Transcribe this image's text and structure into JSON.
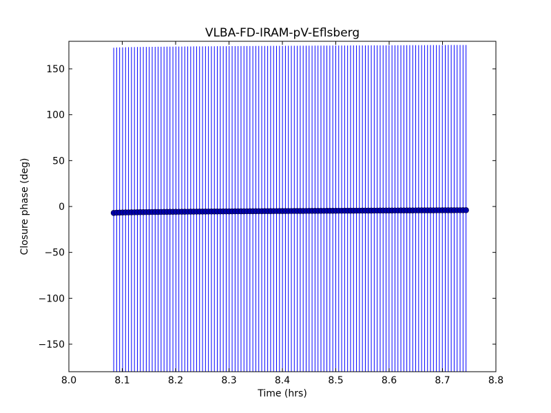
{
  "chart_data": {
    "type": "scatter",
    "title": "VLBA-FD-IRAM-pV-Eflsberg",
    "xlabel": "Time (hrs)",
    "ylabel": "Closure phase (deg)",
    "xlim": [
      8.0,
      8.8
    ],
    "ylim": [
      -180,
      180
    ],
    "x_ticks": [
      8.0,
      8.1,
      8.2,
      8.3,
      8.4,
      8.5,
      8.6,
      8.7,
      8.8
    ],
    "x_tick_labels": [
      "8.0",
      "8.1",
      "8.2",
      "8.3",
      "8.4",
      "8.5",
      "8.6",
      "8.7",
      "8.8"
    ],
    "y_ticks": [
      -150,
      -100,
      -50,
      0,
      50,
      100,
      150
    ],
    "y_tick_labels": [
      "−150",
      "−100",
      "−50",
      "0",
      "50",
      "100",
      "150"
    ],
    "grid": false,
    "legend": "none",
    "marker_color": "#0000aa",
    "errorbar_color": "#0000ff",
    "series": [
      {
        "x_start": 8.084,
        "x_end": 8.744,
        "n_points": 120,
        "y_start": -7,
        "y_end": -4,
        "yerr": 180
      }
    ]
  }
}
